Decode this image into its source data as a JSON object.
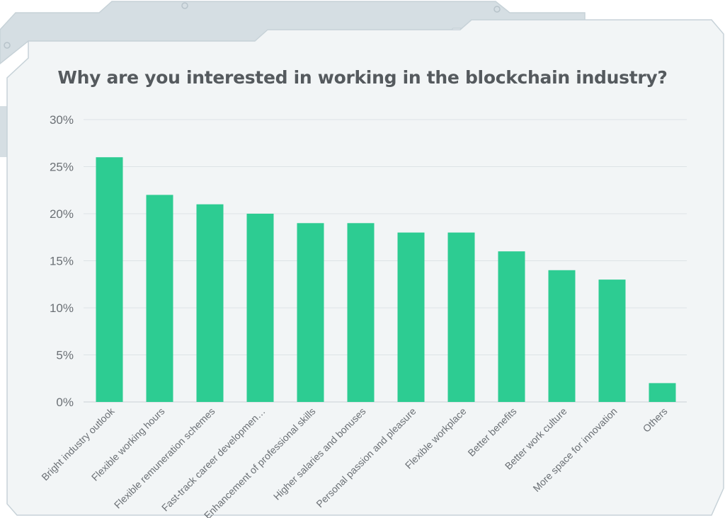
{
  "colors": {
    "bar": "#2dcc92",
    "grid": "#dde3e6",
    "frame_fill": "#f2f5f6",
    "frame_stroke": "#c7d2d8",
    "tab_fill": "#d5dee3",
    "text": "#555a5e"
  },
  "chart_data": {
    "type": "bar",
    "title": "Why are you interested in working in the blockchain industry?",
    "xlabel": "",
    "ylabel": "",
    "ylim": [
      0,
      30
    ],
    "yticks": [
      "0%",
      "5%",
      "10%",
      "15%",
      "20%",
      "25%",
      "30%"
    ],
    "grid": true,
    "categories": [
      "Bright industry outlook",
      "Flexible working hours",
      "Flexible remuneration schemes",
      "Fast-track career developmen…",
      "Enhancement of professional skills",
      "Higher salaries and bonuses",
      "Personal passion and pleasure",
      "Flexible workplace",
      "Better benefits",
      "Better work culture",
      "More space for innovation",
      "Others"
    ],
    "values": [
      26,
      22,
      21,
      20,
      19,
      19,
      18,
      18,
      16,
      14,
      13,
      2
    ]
  }
}
